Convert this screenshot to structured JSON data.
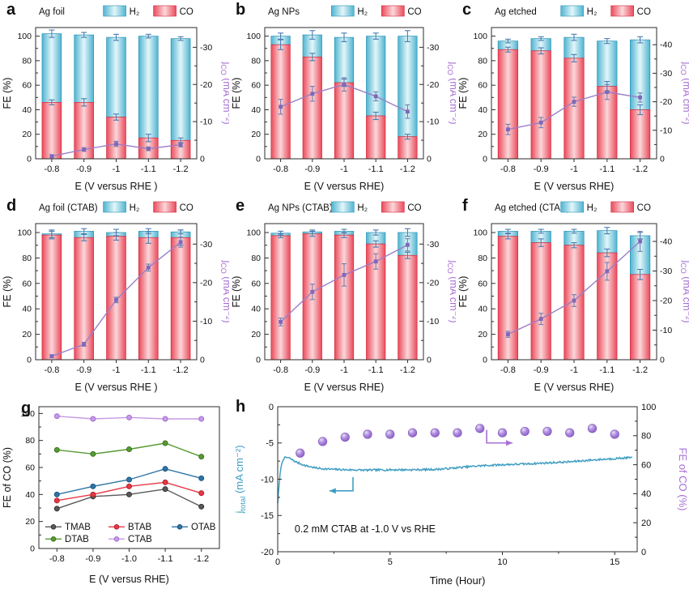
{
  "figure": {
    "background": "#ffffff"
  },
  "colors": {
    "axis": "#2b2b2b",
    "text": "#111111",
    "bar_h2": [
      "#4fb4d0",
      "#e3f6fa",
      "#4fb4d0"
    ],
    "bar_h2_stroke": "#2c94b5",
    "bar_co": [
      "#ea4a5b",
      "#fbd7da",
      "#ea4a5b"
    ],
    "bar_co_stroke": "#d42a3d",
    "bar_err": "#4a7cb0",
    "jline": "#9b7fc7",
    "jmarker": "#7f68b8",
    "jerr": "#6f7fae",
    "purple": "#a76fd4",
    "hblue": "#3f9ec2",
    "sphere": [
      "#eadef8",
      "#b18fe0",
      "#8a5cc4"
    ],
    "sphere_stroke": "#7e57b8"
  },
  "chart_data": [
    {
      "panel_label": "a",
      "type": "stacked_bar_line",
      "title": "Ag foil",
      "xlabel": "E (V versus RHE )",
      "ylabel": "FE (%)",
      "y2label": {
        "pre": "j",
        "sub": "CO",
        "rest": " (mA cm⁻²)"
      },
      "legend": {
        "h2": "H₂",
        "co": "CO"
      },
      "categories": [
        "-0.8",
        "-0.9",
        "-1",
        "-1.1",
        "-1.2"
      ],
      "y_ticks": [
        0,
        20,
        40,
        60,
        80,
        100
      ],
      "co": [
        46,
        46,
        34,
        17,
        15
      ],
      "h2_total": [
        102,
        101,
        99,
        100,
        98
      ],
      "co_err": [
        2,
        3,
        2.5,
        3,
        2
      ],
      "total_err": [
        3,
        2,
        2.5,
        1.5,
        1.5
      ],
      "jco": [
        -0.7,
        -2.5,
        -4,
        -2.7,
        -3.8
      ],
      "jco_err": [
        0.4,
        0.5,
        0.7,
        0.5,
        0.6
      ],
      "y2_ticks": [
        0,
        -10,
        -20,
        -30
      ],
      "y2_fe_per_unit": 3.03
    },
    {
      "panel_label": "b",
      "type": "stacked_bar_line",
      "title": "Ag NPs",
      "xlabel": "E (V versus RHE)",
      "ylabel": "FE (%)",
      "y2label": {
        "pre": "j",
        "sub": "CO",
        "rest": " (mA cm⁻²)"
      },
      "legend": {
        "h2": "H₂",
        "co": "CO"
      },
      "categories": [
        "-0.8",
        "-0.9",
        "-1",
        "-1.1",
        "-1.2"
      ],
      "y_ticks": [
        0,
        20,
        40,
        60,
        80,
        100
      ],
      "co": [
        93,
        83,
        62,
        35,
        18
      ],
      "h2_total": [
        100,
        101,
        99,
        100,
        100
      ],
      "co_err": [
        4,
        3,
        3,
        3,
        2
      ],
      "total_err": [
        2.5,
        3.5,
        3.5,
        2.5,
        4.5
      ],
      "jco": [
        -14,
        -17.5,
        -20,
        -16.8,
        -12.7
      ],
      "jco_err": [
        2,
        2,
        1.8,
        1.2,
        1.8
      ],
      "y2_ticks": [
        0,
        -10,
        -20,
        -30
      ],
      "y2_fe_per_unit": 3.03
    },
    {
      "panel_label": "c",
      "type": "stacked_bar_line",
      "title": "Ag etched",
      "xlabel": "E (V versus RHE)",
      "ylabel": "FE (%)",
      "y2label": {
        "pre": "j",
        "sub": "CO",
        "rest": " (mA cm⁻²)"
      },
      "legend": {
        "h2": "H₂",
        "co": "CO"
      },
      "categories": [
        "-0.8",
        "-0.9",
        "-1",
        "-1.1",
        "-1.2"
      ],
      "y_ticks": [
        0,
        20,
        40,
        60,
        80,
        100
      ],
      "co": [
        89,
        88,
        82,
        59,
        40
      ],
      "h2_total": [
        96,
        98,
        99,
        96,
        97
      ],
      "co_err": [
        2,
        2.5,
        3,
        4,
        4
      ],
      "total_err": [
        1.5,
        1.5,
        2.5,
        2,
        2.5
      ],
      "jco": [
        -10.3,
        -12.7,
        -20,
        -23.4,
        -21.5
      ],
      "jco_err": [
        1.8,
        1.8,
        1.6,
        2.6,
        1.6
      ],
      "y2_ticks": [
        0,
        -10,
        -20,
        -30,
        -40
      ],
      "y2_fe_per_unit": 2.325
    },
    {
      "panel_label": "d",
      "type": "stacked_bar_line",
      "title": "Ag foil (CTAB)",
      "xlabel": "E (V versus RHE )",
      "ylabel": "FE (%)",
      "y2label": {
        "pre": "j",
        "sub": "CO",
        "rest": " (mA cm⁻²)"
      },
      "legend": {
        "h2": "H₂",
        "co": "CO"
      },
      "categories": [
        "-0.8",
        "-0.9",
        "-1",
        "-1.1",
        "-1.2"
      ],
      "y_ticks": [
        0,
        20,
        40,
        60,
        80,
        100
      ],
      "co": [
        98,
        96,
        97,
        96,
        96
      ],
      "h2_total": [
        99,
        101,
        100,
        101,
        100.5
      ],
      "co_err": [
        3,
        2.5,
        3,
        4.5,
        6
      ],
      "total_err": [
        3,
        2,
        2.5,
        2,
        1.5
      ],
      "jco": [
        -0.9,
        -4,
        -15.5,
        -23.9,
        -30.5
      ],
      "jco_err": [
        0.4,
        0.5,
        0.7,
        0.9,
        1.3
      ],
      "y2_ticks": [
        0,
        -10,
        -20,
        -30
      ],
      "y2_fe_per_unit": 3.03
    },
    {
      "panel_label": "e",
      "type": "stacked_bar_line",
      "title": "Ag NPs (CTAB)",
      "xlabel": "E (V versus RHE)",
      "ylabel": "FE (%)",
      "y2label": {
        "pre": "j",
        "sub": "CO",
        "rest": " (mA cm⁻²)"
      },
      "legend": {
        "h2": "H₂",
        "co": "CO"
      },
      "categories": [
        "-0.8",
        "-0.9",
        "-1",
        "-1.1",
        "-1.2"
      ],
      "y_ticks": [
        0,
        20,
        40,
        60,
        80,
        100
      ],
      "co": [
        97.5,
        99,
        98,
        91,
        82
      ],
      "h2_total": [
        99.5,
        100.5,
        101,
        100,
        100
      ],
      "co_err": [
        1.5,
        2,
        2,
        2.5,
        2.5
      ],
      "total_err": [
        1.5,
        1.5,
        1.5,
        2,
        3
      ],
      "jco": [
        -9.8,
        -17.6,
        -22,
        -25.5,
        -29.8
      ],
      "jco_err": [
        1,
        2,
        2.9,
        2,
        1.6
      ],
      "y2_ticks": [
        0,
        -10,
        -20,
        -30
      ],
      "y2_fe_per_unit": 3.03
    },
    {
      "panel_label": "f",
      "type": "stacked_bar_line",
      "title": "Ag etched (CTAB)",
      "xlabel": "E (V versus RHE)",
      "ylabel": "FE (%)",
      "y2label": {
        "pre": "j",
        "sub": "CO",
        "rest": " (mA cm⁻²)"
      },
      "legend": {
        "h2": "H₂",
        "co": "CO"
      },
      "categories": [
        "-0.8",
        "-0.9",
        "-1",
        "-1.1",
        "-1.2"
      ],
      "y_ticks": [
        0,
        20,
        40,
        60,
        80,
        100
      ],
      "co": [
        97,
        92,
        90,
        84,
        67
      ],
      "h2_total": [
        101,
        101,
        101,
        101.5,
        97.5
      ],
      "co_err": [
        2,
        3,
        2,
        3,
        4
      ],
      "total_err": [
        1.5,
        1.5,
        1.5,
        2.5,
        2.5
      ],
      "jco": [
        -8.6,
        -13.8,
        -20,
        -29.9,
        -40
      ],
      "jco_err": [
        1,
        1.9,
        2,
        3,
        3.4
      ],
      "y2_ticks": [
        0,
        -10,
        -20,
        -30,
        -40
      ],
      "y2_fe_per_unit": 2.325
    },
    {
      "panel_label": "g",
      "type": "multi_line",
      "xlabel": "E (V versus RHE)",
      "ylabel": "FE of CO (%)",
      "categories": [
        "-0.8",
        "-0.9",
        "-1.0",
        "-1.1",
        "-1.2"
      ],
      "y_ticks": [
        0,
        20,
        40,
        60,
        80,
        100
      ],
      "series": [
        {
          "name": "TMAB",
          "color": "#595959",
          "edge": "#333333",
          "values": [
            29.5,
            38.5,
            40,
            44,
            31
          ]
        },
        {
          "name": "BTAB",
          "color": "#e63946",
          "edge": "#b51f2c",
          "values": [
            35.5,
            40,
            46,
            49,
            41
          ]
        },
        {
          "name": "OTAB",
          "color": "#2e74a6",
          "edge": "#1d547e",
          "values": [
            40,
            46,
            51,
            59,
            52
          ]
        },
        {
          "name": "DTAB",
          "color": "#579b33",
          "edge": "#3b7320",
          "values": [
            73,
            70,
            73.5,
            78,
            68
          ]
        },
        {
          "name": "CTAB",
          "color": "#c89ae6",
          "edge": "#a06fd0",
          "values": [
            98,
            96,
            97,
            96,
            96
          ]
        }
      ],
      "legend_rows": [
        [
          "TMAB",
          "BTAB",
          "OTAB"
        ],
        [
          "DTAB",
          "CTAB"
        ]
      ]
    },
    {
      "panel_label": "h",
      "type": "stability",
      "xlabel": "Time (Hour)",
      "ylabel": {
        "pre": "j",
        "sub": "total",
        "rest": " (mA cm⁻²)"
      },
      "y2label": "FE of CO (%)",
      "annotation": "0.2 mM CTAB at -1.0 V vs RHE",
      "xlim": [
        0,
        16
      ],
      "x_ticks": [
        0,
        5,
        10,
        15
      ],
      "ylim": [
        -20,
        0
      ],
      "y_ticks": [
        0,
        -5,
        -10,
        -15,
        -20
      ],
      "y2lim": [
        0,
        100
      ],
      "y2_ticks": [
        0,
        20,
        40,
        60,
        80,
        100
      ],
      "curve_anchors": [
        [
          0,
          -13.3
        ],
        [
          0.05,
          -11.2
        ],
        [
          0.12,
          -8.8
        ],
        [
          0.2,
          -7.6
        ],
        [
          0.32,
          -6.95
        ],
        [
          0.5,
          -7.05
        ],
        [
          0.8,
          -7.6
        ],
        [
          1.2,
          -8.1
        ],
        [
          1.7,
          -8.45
        ],
        [
          2.2,
          -8.6
        ],
        [
          3,
          -8.7
        ],
        [
          4,
          -8.75
        ],
        [
          5,
          -8.7
        ],
        [
          6,
          -8.7
        ],
        [
          7,
          -8.65
        ],
        [
          7.7,
          -8.5
        ],
        [
          8.4,
          -8.3
        ],
        [
          9,
          -8.15
        ],
        [
          10,
          -8.0
        ],
        [
          11,
          -7.9
        ],
        [
          12,
          -7.75
        ],
        [
          13,
          -7.6
        ],
        [
          14,
          -7.35
        ],
        [
          15,
          -7.15
        ],
        [
          15.8,
          -7.0
        ]
      ],
      "spheres": {
        "hours": [
          1,
          2,
          3,
          4,
          5,
          6,
          7,
          8,
          9,
          10,
          11,
          12,
          13,
          14,
          15
        ],
        "fe": [
          68,
          76,
          79,
          81,
          81,
          82,
          82,
          82,
          85,
          82,
          83,
          83,
          82,
          85,
          81
        ]
      },
      "arrows": [
        {
          "axis": "left",
          "color": "#3f9ec2",
          "points": [
            [
              3.35,
              -9.7
            ],
            [
              3.35,
              -11.6
            ],
            [
              2.3,
              -11.6
            ]
          ]
        },
        {
          "axis": "right",
          "color": "#a76fd4",
          "points": [
            [
              9.3,
              84
            ],
            [
              9.3,
              75
            ],
            [
              10.45,
              75
            ]
          ]
        }
      ]
    }
  ]
}
